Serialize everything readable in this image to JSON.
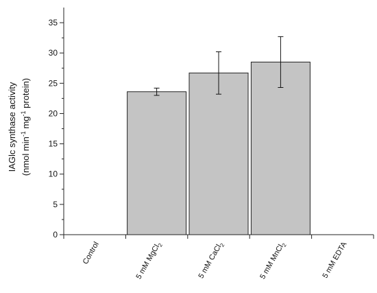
{
  "chart_data": {
    "type": "bar",
    "title": "",
    "ylabel_line1": "IAGlc synthase activity",
    "ylabel_line2": {
      "pre": "(nmol min",
      "sup1": "-1",
      "mid": " mg",
      "sup2": "-1",
      "post": " protein)"
    },
    "categories": [
      {
        "label": "Control",
        "base": "Control",
        "sub": ""
      },
      {
        "label": "5 mM MgCl2",
        "base": "5 mM MgCl",
        "sub": "2"
      },
      {
        "label": "5 mM CaCl2",
        "base": "5 mM CaCl",
        "sub": "2"
      },
      {
        "label": "5 mM MnCl2",
        "base": "5 mM MnCl",
        "sub": "2"
      },
      {
        "label": "5 mM EDTA",
        "base": "5 mM EDTA",
        "sub": ""
      }
    ],
    "values": [
      0,
      23.6,
      26.7,
      28.5,
      0
    ],
    "errors": [
      0,
      0.6,
      3.5,
      4.2,
      0
    ],
    "ylim": [
      0,
      37.5
    ],
    "yticks": [
      "0",
      "5",
      "10",
      "15",
      "20",
      "25",
      "30",
      "35"
    ],
    "grid": false,
    "legend": "none",
    "colors": {
      "bar_fill": "#c4c4c4",
      "bar_stroke": "#222222",
      "axis": "#222222"
    }
  }
}
